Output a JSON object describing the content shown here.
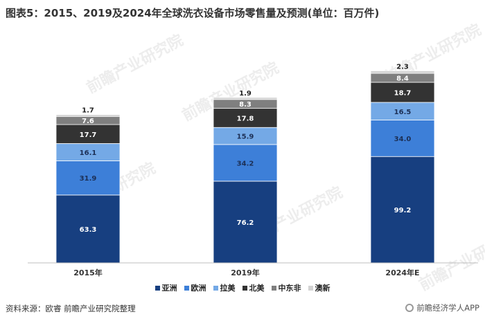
{
  "title": "图表5：2015、2019及2024年全球洗衣设备市场零售量及预测(单位：百万件)",
  "source": "资料来源：欧睿 前瞻产业研究院整理",
  "brand": "前瞻经济学人APP",
  "watermark": "前瞻产业研究院",
  "colors": [
    "#173f80",
    "#3d7fd8",
    "#74a9e6",
    "#333333",
    "#7f7f7f",
    "#d2d2d2"
  ],
  "chart_data": {
    "type": "bar",
    "stacked": true,
    "categories": [
      "2015年",
      "2019年",
      "2024年E"
    ],
    "series": [
      {
        "name": "亚洲",
        "values": [
          63.3,
          76.2,
          99.2
        ]
      },
      {
        "name": "欧洲",
        "values": [
          31.9,
          34.2,
          34.0
        ]
      },
      {
        "name": "拉美",
        "values": [
          16.1,
          15.9,
          16.5
        ]
      },
      {
        "name": "北美",
        "values": [
          17.7,
          17.8,
          18.7
        ]
      },
      {
        "name": "中东非",
        "values": [
          7.6,
          8.3,
          8.4
        ]
      },
      {
        "name": "澳新",
        "values": [
          1.7,
          1.9,
          2.3
        ]
      }
    ],
    "legend_position": "bottom",
    "grid": false
  }
}
